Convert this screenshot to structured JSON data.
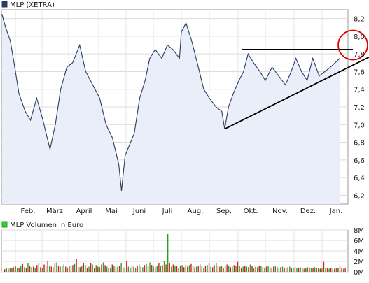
{
  "chart_data": [
    {
      "type": "line",
      "legend": {
        "label": "MLP (XETRA)",
        "placement": "top-left",
        "swatch_color": "#2a3a63"
      },
      "categories": [
        "Feb.",
        "März",
        "April",
        "Mai",
        "Juni",
        "Juli",
        "Aug.",
        "Sep.",
        "Okt.",
        "Nov.",
        "Dez.",
        "Jan."
      ],
      "yticks": [
        "6,2",
        "6,4",
        "6,6",
        "6,8",
        "7,0",
        "7,2",
        "7,4",
        "7,6",
        "7,8",
        "8,0",
        "8,2"
      ],
      "ylim": [
        6.1,
        8.3
      ],
      "y_axis_side": "right",
      "grid": true,
      "series": [
        {
          "name": "MLP (XETRA)",
          "color": "#2a3a63",
          "fill": "#e9eef8",
          "x": [
            "Jan. 2",
            "Jan. 10",
            "Jan. 20",
            "Jan. 28",
            "Feb. 5",
            "Feb. 12",
            "Feb. 18",
            "Feb. 25",
            "März 2",
            "März 10",
            "März 16",
            "März 22",
            "März 29",
            "April 5",
            "April 12",
            "April 18",
            "April 25",
            "Mai 2",
            "Mai 9",
            "Mai 16",
            "Mai 23",
            "Mai 26",
            "Mai 30",
            "Juni 4",
            "Juni 10",
            "Juni 16",
            "Juni 22",
            "Juni 27",
            "Juli 3",
            "Juli 10",
            "Juli 16",
            "Juli 22",
            "Juli 29",
            "Aug. 1",
            "Aug. 6",
            "Aug. 12",
            "Aug. 18",
            "Aug. 25",
            "Sep. 1",
            "Sep. 8",
            "Sep. 14",
            "Sep. 17",
            "Sep. 21",
            "Sep. 26",
            "Okt. 2",
            "Okt. 7",
            "Okt. 12",
            "Okt. 18",
            "Okt. 25",
            "Nov. 1",
            "Nov. 8",
            "Nov. 15",
            "Nov. 22",
            "Nov. 28",
            "Dez. 3",
            "Dez. 9",
            "Dez. 15",
            "Dez. 21",
            "Dez. 28",
            "Jan. 4",
            "Jan. 10",
            "Jan. 15",
            "Jan. 20"
          ],
          "y": [
            8.25,
            8.1,
            7.95,
            7.7,
            7.35,
            7.15,
            7.05,
            7.3,
            7.05,
            6.72,
            7.0,
            7.4,
            7.65,
            7.7,
            7.9,
            7.6,
            7.45,
            7.3,
            7.0,
            6.85,
            6.55,
            6.25,
            6.65,
            6.75,
            6.9,
            7.3,
            7.5,
            7.75,
            7.85,
            7.75,
            7.9,
            7.85,
            7.75,
            8.05,
            8.15,
            7.95,
            7.7,
            7.4,
            7.3,
            7.2,
            7.15,
            6.95,
            7.2,
            7.35,
            7.5,
            7.6,
            7.8,
            7.7,
            7.6,
            7.5,
            7.65,
            7.55,
            7.45,
            7.6,
            7.75,
            7.6,
            7.5,
            7.75,
            7.55,
            7.6,
            7.65,
            7.7,
            7.75
          ]
        }
      ],
      "annotations": [
        {
          "type": "trendline",
          "from": {
            "x": "Sep. 17",
            "y": 6.95
          },
          "to": {
            "x": "Jan. 20",
            "y": 7.7
          }
        },
        {
          "type": "trendline",
          "from": {
            "x": "Okt. 5",
            "y": 7.85
          },
          "to": {
            "x": "Jan. 15",
            "y": 7.85
          }
        },
        {
          "type": "circle",
          "center": {
            "x": "Jan. 20",
            "y": 7.9
          },
          "color": "#e00000"
        }
      ]
    },
    {
      "type": "bar",
      "legend": {
        "label": "MLP Volumen in Euro",
        "placement": "top-left",
        "swatch_color": "#33cc33"
      },
      "yticks": [
        "0M",
        "2M",
        "4M",
        "6M",
        "8M"
      ],
      "ylim": [
        0,
        8
      ],
      "y_axis_side": "right",
      "grid": true,
      "colors": [
        "#d02020",
        "#2aa02a"
      ],
      "values": [
        0.5,
        0.7,
        0.6,
        0.8,
        0.7,
        0.9,
        1.1,
        0.8,
        0.7,
        1.2,
        1.5,
        0.9,
        0.8,
        1.6,
        1.1,
        0.9,
        1.0,
        0.7,
        1.3,
        1.6,
        0.9,
        0.8,
        1.4,
        1.1,
        2.0,
        1.2,
        1.0,
        0.9,
        1.6,
        1.8,
        1.2,
        1.0,
        1.1,
        1.4,
        1.0,
        0.8,
        1.2,
        1.1,
        1.3,
        1.5,
        2.4,
        1.0,
        0.9,
        1.2,
        1.6,
        1.3,
        0.8,
        1.0,
        1.7,
        1.4,
        0.7,
        1.3,
        1.0,
        0.9,
        1.4,
        1.8,
        1.3,
        1.0,
        0.7,
        0.8,
        1.4,
        1.1,
        0.9,
        1.0,
        1.2,
        1.6,
        0.9,
        0.8,
        2.1,
        1.0,
        0.7,
        1.1,
        1.0,
        0.8,
        1.2,
        1.4,
        1.0,
        0.9,
        1.3,
        1.5,
        1.1,
        1.8,
        1.3,
        1.0,
        0.9,
        1.2,
        1.6,
        1.1,
        1.3,
        2.0,
        1.4,
        7.2,
        1.7,
        1.0,
        1.4,
        1.1,
        1.2,
        0.8,
        1.1,
        1.3,
        0.9,
        1.4,
        1.0,
        1.3,
        1.5,
        1.1,
        0.9,
        1.0,
        1.2,
        1.4,
        1.0,
        0.8,
        1.2,
        1.3,
        1.6,
        1.0,
        0.9,
        1.3,
        1.7,
        1.1,
        1.0,
        1.2,
        0.8,
        1.1,
        1.4,
        1.2,
        0.9,
        1.0,
        1.3,
        1.1,
        1.9,
        1.2,
        0.8,
        1.0,
        1.1,
        1.0,
        0.9,
        1.4,
        1.1,
        0.8,
        1.0,
        0.9,
        1.1,
        1.2,
        0.9,
        0.8,
        1.0,
        1.2,
        0.9,
        0.8,
        1.0,
        1.1,
        0.9,
        0.8,
        0.9,
        1.0,
        0.8,
        0.7,
        0.9,
        1.0,
        0.8,
        0.7,
        0.9,
        0.8,
        0.7,
        0.9,
        0.8,
        0.6,
        0.8,
        0.9,
        0.7,
        0.8,
        0.7,
        0.9,
        0.7,
        0.8,
        0.6,
        0.7,
        1.9,
        0.8,
        0.7,
        0.6,
        0.8,
        0.7,
        0.6,
        0.8,
        0.7,
        1.2,
        0.8,
        0.6,
        0.7
      ]
    }
  ]
}
